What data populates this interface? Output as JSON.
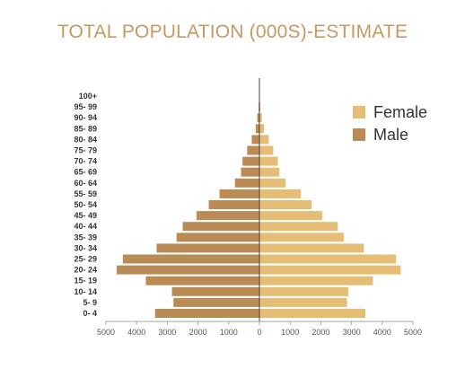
{
  "chart_data": {
    "type": "bar",
    "orientation": "horizontal",
    "title": "TOTAL POPULATION (000S)-ESTIMATE",
    "categories": [
      "0- 4",
      "5- 9",
      "10- 14",
      "15- 19",
      "20- 24",
      "25- 29",
      "30- 34",
      "35- 39",
      "40- 44",
      "45- 49",
      "50- 54",
      "55- 59",
      "60- 64",
      "65- 69",
      "70- 74",
      "75- 79",
      "80- 84",
      "85- 89",
      "90- 94",
      "95- 99",
      "100+"
    ],
    "series": [
      {
        "name": "Female",
        "color": "#e6bd74",
        "values": [
          3450,
          2850,
          2900,
          3700,
          4600,
          4450,
          3400,
          2750,
          2550,
          2050,
          1700,
          1350,
          850,
          650,
          600,
          450,
          300,
          150,
          80,
          30,
          5
        ]
      },
      {
        "name": "Male",
        "color": "#bb8b56",
        "values": [
          3400,
          2800,
          2850,
          3700,
          4650,
          4450,
          3350,
          2700,
          2500,
          2050,
          1650,
          1300,
          800,
          600,
          550,
          400,
          250,
          120,
          70,
          25,
          5
        ]
      }
    ],
    "x_ticks": [
      "5000",
      "4000",
      "3000",
      "2000",
      "1000",
      "0",
      "1000",
      "2000",
      "3000",
      "4000",
      "5000"
    ],
    "xlim": [
      -5000,
      5000
    ],
    "legend_position": "right",
    "legend": [
      "Female",
      "Male"
    ],
    "grid": false
  }
}
